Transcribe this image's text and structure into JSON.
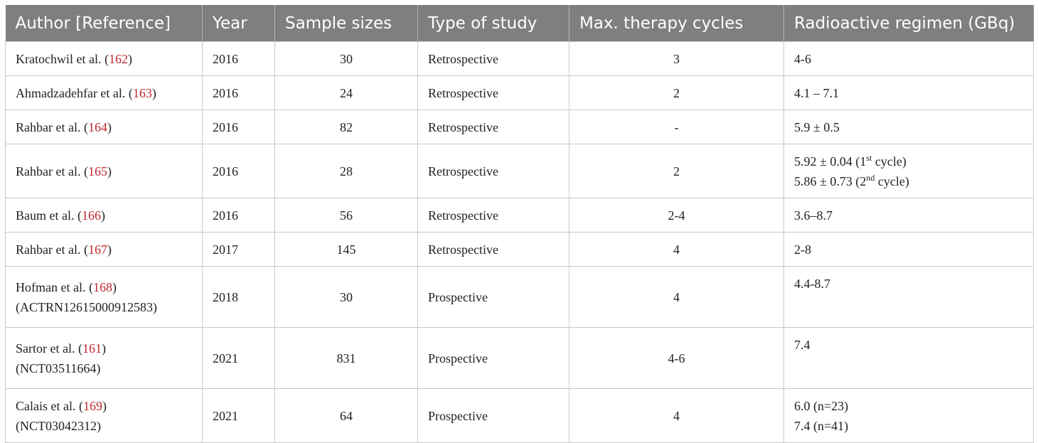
{
  "headers": [
    "Author [Reference]",
    "Year",
    "Sample sizes",
    "Type of study",
    "Max. therapy cycles",
    "Radioactive regimen (GBq)"
  ],
  "rows": [
    {
      "author": "Kratochwil et al. (",
      "ref": "162",
      "close": ")",
      "sub": "",
      "year": "2016",
      "size": "30",
      "type": "Retrospective",
      "cycles": "3",
      "regimen": "4-6"
    },
    {
      "author": "Ahmadzadehfar et al. (",
      "ref": "163",
      "close": ")",
      "sub": "",
      "year": "2016",
      "size": "24",
      "type": "Retrospective",
      "cycles": "2",
      "regimen": "4.1 – 7.1"
    },
    {
      "author": "Rahbar et al. (",
      "ref": "164",
      "close": ")",
      "sub": "",
      "year": "2016",
      "size": "82",
      "type": "Retrospective",
      "cycles": "-",
      "regimen": "5.9 ± 0.5"
    },
    {
      "author": "Rahbar et al. (",
      "ref": "165",
      "close": ")",
      "sub": "",
      "year": "2016",
      "size": "28",
      "type": "Retrospective",
      "cycles": "2",
      "regimen_lines": [
        {
          "pre": "5.92 ± 0.04 (1",
          "sup": "st",
          "post": " cycle)"
        },
        {
          "pre": "5.86 ± 0.73 (2",
          "sup": "nd",
          "post": " cycle)"
        }
      ]
    },
    {
      "author": "Baum et al. (",
      "ref": "166",
      "close": ")",
      "sub": "",
      "year": "2016",
      "size": "56",
      "type": "Retrospective",
      "cycles": "2-4",
      "regimen": "3.6–8.7"
    },
    {
      "author": "Rahbar et al. (",
      "ref": "167",
      "close": ")",
      "sub": "",
      "year": "2017",
      "size": "145",
      "type": "Retrospective",
      "cycles": "4",
      "regimen": "2-8"
    },
    {
      "author": "Hofman et al. (",
      "ref": "168",
      "close": ")",
      "sub": "(ACTRN12615000912583)",
      "year": "2018",
      "size": "30",
      "type": "Prospective",
      "cycles": "4",
      "regimen": "4.4-8.7"
    },
    {
      "author": "Sartor et al. (",
      "ref": "161",
      "close": ")",
      "sub": "(NCT03511664)",
      "year": "2021",
      "size": "831",
      "type": "Prospective",
      "cycles": "4-6",
      "regimen": "7.4"
    },
    {
      "author": "Calais et al. (",
      "ref": "169",
      "close": ")",
      "sub": "(NCT03042312)",
      "year": "2021",
      "size": "64",
      "type": "Prospective",
      "cycles": "4",
      "regimen_lines": [
        {
          "pre": "6.0 (n=23)",
          "sup": "",
          "post": ""
        },
        {
          "pre": "7.4 (n=41)",
          "sup": "",
          "post": ""
        }
      ]
    }
  ]
}
